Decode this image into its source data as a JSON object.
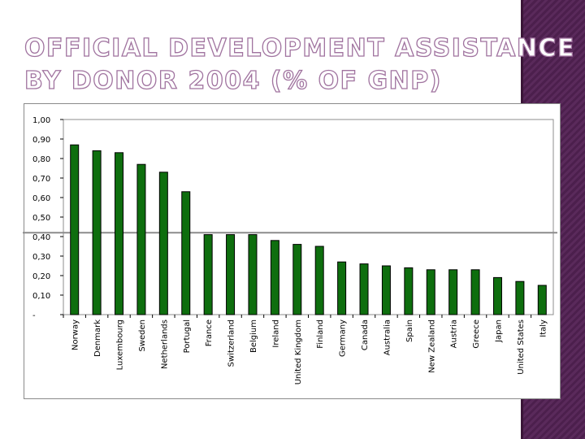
{
  "slide": {
    "title_line1": "OFFICIAL DEVELOPMENT ASSISTANCE",
    "title_line2": "BY DONOR 2004 (% OF GNP)",
    "accent_color": "#5a2a5b",
    "title_outline_color": "#a0739f"
  },
  "chart_data": {
    "type": "bar",
    "title": "",
    "xlabel": "",
    "ylabel": "",
    "ylim": [
      0,
      1.0
    ],
    "y_ticks": [
      "-",
      "0,10",
      "0,20",
      "0,30",
      "0,40",
      "0,50",
      "0,60",
      "0,70",
      "0,80",
      "0,90",
      "1,00"
    ],
    "categories": [
      "Norway",
      "Denmark",
      "Luxembourg",
      "Sweden",
      "Netherlands",
      "Portugal",
      "France",
      "Switzerland",
      "Belgium",
      "Ireland",
      "United Kingdom",
      "Finland",
      "Germany",
      "Canada",
      "Australia",
      "Spain",
      "New Zealand",
      "Austria",
      "Greece",
      "Japan",
      "United States",
      "Italy"
    ],
    "values": [
      0.87,
      0.84,
      0.83,
      0.77,
      0.73,
      0.63,
      0.41,
      0.41,
      0.41,
      0.38,
      0.36,
      0.35,
      0.27,
      0.26,
      0.25,
      0.24,
      0.23,
      0.23,
      0.23,
      0.19,
      0.17,
      0.15
    ],
    "reference_line": 0.42,
    "bar_color": "#0e6e0e",
    "bar_border_color": "#000000",
    "grid": false,
    "legend": "none"
  }
}
